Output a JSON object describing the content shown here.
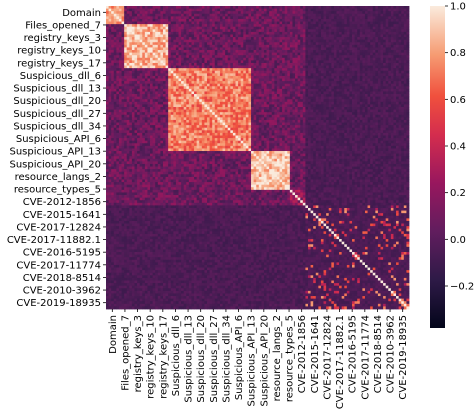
{
  "chart_data": {
    "type": "heatmap",
    "title": "",
    "xlabel": "",
    "ylabel": "",
    "grid": false,
    "colormap": "rocket",
    "colorbar": {
      "range": [
        -0.38,
        1.0
      ],
      "ticks": [
        -0.2,
        0.0,
        0.2,
        0.4,
        0.6,
        0.8,
        1.0
      ]
    },
    "labels": [
      "Domain",
      "Files_opened_7",
      "registry_keys_3",
      "registry_keys_10",
      "registry_keys_17",
      "Suspicious_dll_6",
      "Suspicious_dll_13",
      "Suspicious_dll_20",
      "Suspicious_dll_27",
      "Suspicious_dll_34",
      "Suspicious_API_6",
      "Suspicious_API_13",
      "Suspicious_API_20",
      "resource_langs_2",
      "resource_types_5",
      "CVE-2012-1856",
      "CVE-2015-1641",
      "CVE-2017-12824",
      "CVE-2017-11882.1",
      "CVE-2016-5195",
      "CVE-2017-11774",
      "CVE-2018-8514",
      "CVE-2010-3962",
      "CVE-2019-18935"
    ],
    "matrix_size": 117,
    "blocks": [
      {
        "name": "files",
        "start": 0,
        "end": 7,
        "within": 0.72
      },
      {
        "name": "registry",
        "start": 7,
        "end": 24,
        "within": 0.85
      },
      {
        "name": "dll",
        "start": 24,
        "end": 56,
        "within": 0.72
      },
      {
        "name": "api",
        "start": 56,
        "end": 71,
        "within": 0.9
      },
      {
        "name": "resources",
        "start": 71,
        "end": 77,
        "within": 0.2
      },
      {
        "name": "cve",
        "start": 77,
        "end": 117,
        "within": -0.05
      }
    ]
  }
}
